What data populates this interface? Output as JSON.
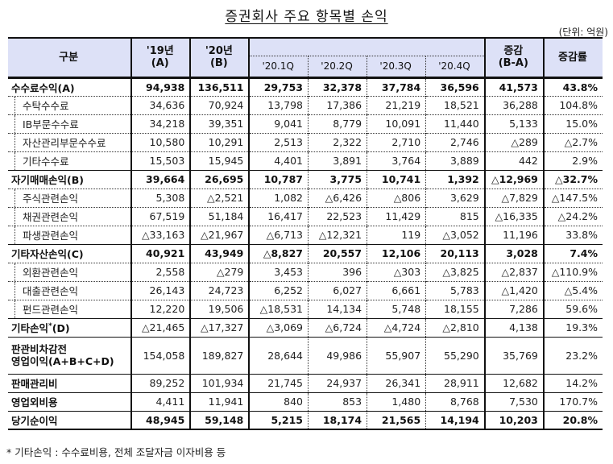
{
  "title": "증권회사 주요 항목별 손익",
  "unit": "(단위: 억원)",
  "header": {
    "category": "구분",
    "y2019": {
      "line1": "'19년",
      "line2": "(A)"
    },
    "y2020": {
      "line1": "'20년",
      "line2": "(B)"
    },
    "quarters": [
      "'20.1Q",
      "'20.2Q",
      "'20.3Q",
      "'20.4Q"
    ],
    "diff": {
      "line1": "증감",
      "line2": "(B-A)"
    },
    "rate": "증감률"
  },
  "rows": [
    {
      "label": "수수료수익(A)",
      "type": "major",
      "values": [
        "94,938",
        "136,511",
        "29,753",
        "32,378",
        "37,784",
        "36,596",
        "41,573",
        "43.8%"
      ]
    },
    {
      "label": "수탁수수료",
      "type": "sub",
      "values": [
        "34,636",
        "70,924",
        "13,798",
        "17,386",
        "21,219",
        "18,521",
        "36,288",
        "104.8%"
      ]
    },
    {
      "label": "IB부문수수료",
      "type": "sub",
      "values": [
        "34,218",
        "39,351",
        "9,041",
        "8,779",
        "10,091",
        "11,440",
        "5,133",
        "15.0%"
      ]
    },
    {
      "label": "자산관리부문수수료",
      "type": "sub",
      "values": [
        "10,580",
        "10,291",
        "2,513",
        "2,322",
        "2,710",
        "2,746",
        "△289",
        "△2.7%"
      ]
    },
    {
      "label": "기타수수료",
      "type": "sub",
      "values": [
        "15,503",
        "15,945",
        "4,401",
        "3,891",
        "3,764",
        "3,889",
        "442",
        "2.9%"
      ]
    },
    {
      "label": "자기매매손익(B)",
      "type": "major",
      "values": [
        "39,664",
        "26,695",
        "10,787",
        "3,775",
        "10,741",
        "1,392",
        "△12,969",
        "△32.7%"
      ]
    },
    {
      "label": "주식관련손익",
      "type": "sub",
      "values": [
        "5,308",
        "△2,521",
        "1,082",
        "△6,426",
        "△806",
        "3,629",
        "△7,829",
        "△147.5%"
      ]
    },
    {
      "label": "채권관련손익",
      "type": "sub",
      "values": [
        "67,519",
        "51,184",
        "16,417",
        "22,523",
        "11,429",
        "815",
        "△16,335",
        "△24.2%"
      ]
    },
    {
      "label": "파생관련손익",
      "type": "sub",
      "values": [
        "△33,163",
        "△21,967",
        "△6,713",
        "△12,321",
        "119",
        "△3,052",
        "11,196",
        "33.8%"
      ]
    },
    {
      "label": "기타자산손익(C)",
      "type": "major",
      "values": [
        "40,921",
        "43,949",
        "△8,827",
        "20,557",
        "12,106",
        "20,113",
        "3,028",
        "7.4%"
      ]
    },
    {
      "label": "외환관련손익",
      "type": "sub",
      "values": [
        "2,558",
        "△279",
        "3,453",
        "396",
        "△303",
        "△3,825",
        "△2,837",
        "△110.9%"
      ]
    },
    {
      "label": "대출관련손익",
      "type": "sub",
      "values": [
        "26,143",
        "24,723",
        "6,252",
        "6,027",
        "6,661",
        "5,783",
        "△1,420",
        "△5.4%"
      ]
    },
    {
      "label": "펀드관련손익",
      "type": "sub",
      "values": [
        "12,220",
        "19,506",
        "△18,531",
        "14,134",
        "5,748",
        "18,155",
        "7,286",
        "59.6%"
      ]
    },
    {
      "label": "기타손익",
      "label_sup": "*",
      "label_suffix": "(D)",
      "type": "plain",
      "values": [
        "△21,465",
        "△17,327",
        "△3,069",
        "△6,724",
        "△4,724",
        "△2,810",
        "4,138",
        "19.3%"
      ]
    },
    {
      "label": "판관비차감전",
      "label_line2": "영업이익(A+B+C+D)",
      "type": "plain tall",
      "values": [
        "154,058",
        "189,827",
        "28,644",
        "49,986",
        "55,907",
        "55,290",
        "35,769",
        "23.2%"
      ]
    },
    {
      "label": "판매관리비",
      "type": "plain",
      "values": [
        "89,252",
        "101,934",
        "21,745",
        "24,937",
        "26,341",
        "28,911",
        "12,682",
        "14.2%"
      ]
    },
    {
      "label": "영업외비용",
      "type": "plain",
      "values": [
        "4,411",
        "11,941",
        "840",
        "853",
        "1,480",
        "8,768",
        "7,530",
        "170.7%"
      ]
    },
    {
      "label": "당기순이익",
      "type": "major last",
      "values": [
        "48,945",
        "59,148",
        "5,215",
        "18,174",
        "21,565",
        "14,194",
        "10,203",
        "20.8%"
      ]
    }
  ],
  "footnote": "* 기타손익 : 수수료비용, 전체 조달자금 이자비용 등"
}
